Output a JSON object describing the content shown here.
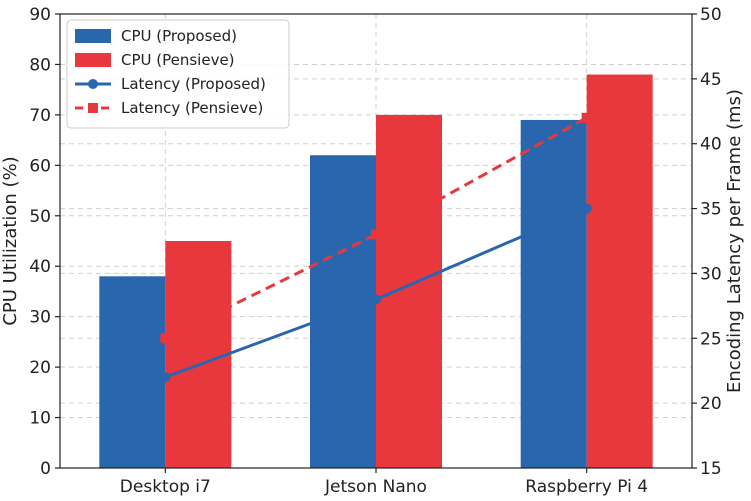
{
  "chart_data": {
    "type": "bar",
    "categories": [
      "Desktop i7",
      "Jetson Nano",
      "Raspberry Pi 4"
    ],
    "series": [
      {
        "name": "CPU (Proposed)",
        "kind": "bar",
        "axis": "left",
        "color": "#2a66ad",
        "values": [
          38,
          62,
          69
        ]
      },
      {
        "name": "CPU (Pensieve)",
        "kind": "bar",
        "axis": "left",
        "color": "#e8383d",
        "values": [
          45,
          70,
          78
        ]
      },
      {
        "name": "Latency (Proposed)",
        "kind": "line",
        "axis": "right",
        "color": "#2a66ad",
        "marker": "circle",
        "line_style": "solid",
        "values": [
          22,
          28,
          35
        ]
      },
      {
        "name": "Latency (Pensieve)",
        "kind": "line",
        "axis": "right",
        "color": "#e8383d",
        "marker": "square",
        "line_style": "dashed",
        "values": [
          25,
          33,
          42
        ]
      }
    ],
    "ylabel": "CPU Utilization (%)",
    "y2label": "Encoding Latency per Frame (ms)",
    "ylim": [
      0,
      90
    ],
    "y2lim": [
      15,
      50
    ],
    "yticks": [
      "0",
      "10",
      "20",
      "30",
      "40",
      "50",
      "60",
      "70",
      "80",
      "90"
    ],
    "y2ticks": [
      "15",
      "20",
      "25",
      "30",
      "35",
      "40",
      "45",
      "50"
    ],
    "grid": true,
    "legend_position": "top-left"
  }
}
